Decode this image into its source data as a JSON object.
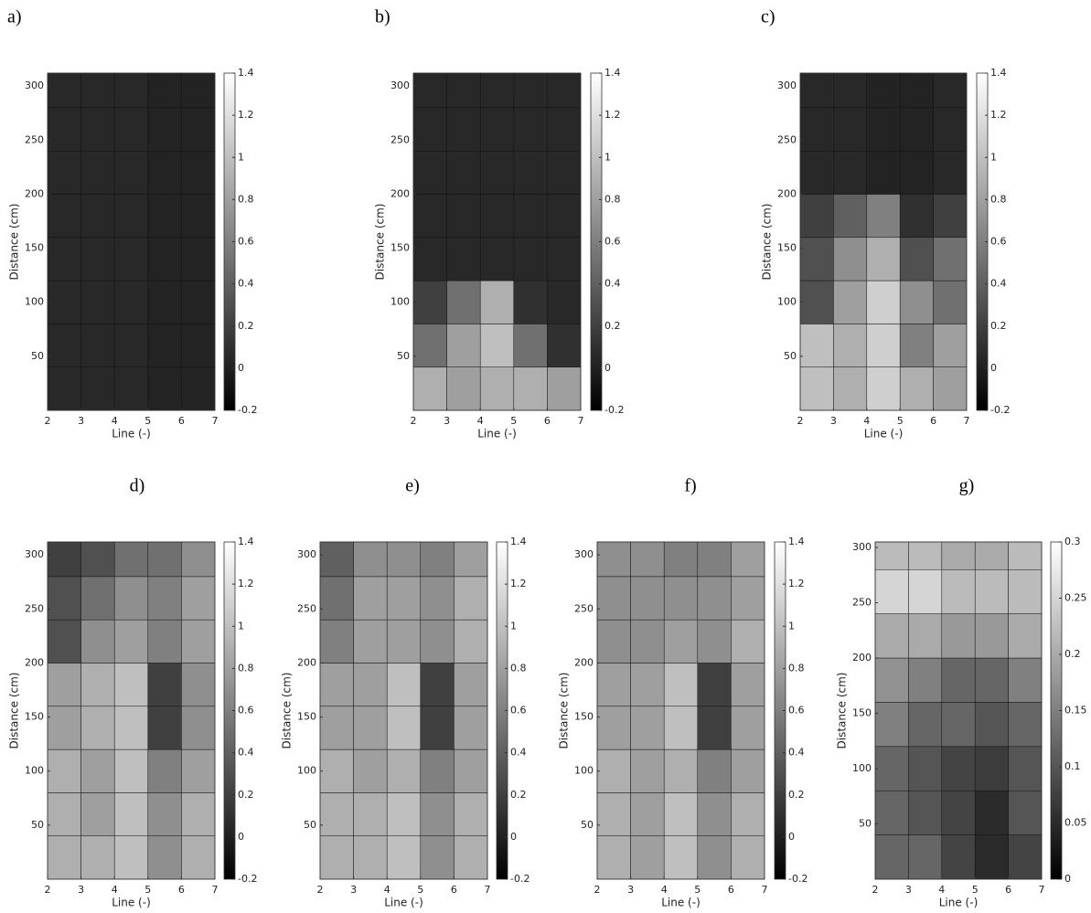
{
  "chart_data": [
    {
      "type": "contour",
      "panel_label": "a)",
      "xlabel": "Line (-)",
      "ylabel": "Distance (cm)",
      "xlim": [
        2,
        7
      ],
      "xticks": [
        2,
        3,
        4,
        5,
        6,
        7
      ],
      "ylim": [
        0,
        312
      ],
      "yticks": [
        50,
        100,
        150,
        200,
        250,
        300
      ],
      "clim": [
        -0.2,
        1.4
      ],
      "cticks": [
        -0.2,
        0,
        0.2,
        0.4,
        0.6,
        0.8,
        1,
        1.2,
        1.4
      ],
      "x_edges": [
        2,
        3,
        4,
        5,
        6,
        7
      ],
      "y_edges": [
        0,
        40,
        80,
        120,
        160,
        200,
        240,
        280,
        312
      ],
      "z": [
        [
          0.05,
          0.05,
          0.05,
          0.02,
          0.02
        ],
        [
          0.05,
          0.05,
          0.05,
          0.02,
          0.02
        ],
        [
          0.05,
          0.05,
          0.05,
          0.02,
          0.02
        ],
        [
          0.05,
          0.05,
          0.05,
          0.02,
          0.02
        ],
        [
          0.05,
          0.05,
          0.05,
          0.02,
          0.02
        ],
        [
          0.05,
          0.05,
          0.05,
          0.02,
          0.02
        ],
        [
          0.05,
          0.05,
          0.05,
          0.02,
          0.02
        ],
        [
          0.05,
          0.05,
          0.05,
          0.02,
          0.02
        ]
      ]
    },
    {
      "type": "contour",
      "panel_label": "b)",
      "xlabel": "Line (-)",
      "ylabel": "Distance (cm)",
      "xlim": [
        2,
        7
      ],
      "xticks": [
        2,
        3,
        4,
        5,
        6,
        7
      ],
      "ylim": [
        0,
        312
      ],
      "yticks": [
        50,
        100,
        150,
        200,
        250,
        300
      ],
      "clim": [
        -0.2,
        1.4
      ],
      "cticks": [
        -0.2,
        0,
        0.2,
        0.4,
        0.6,
        0.8,
        1,
        1.2,
        1.4
      ],
      "x_edges": [
        2,
        3,
        4,
        5,
        6,
        7
      ],
      "y_edges": [
        0,
        40,
        80,
        120,
        160,
        200,
        240,
        280,
        312
      ],
      "z": [
        [
          0.9,
          0.8,
          0.9,
          0.9,
          0.8
        ],
        [
          0.5,
          0.8,
          1.0,
          0.5,
          0.1
        ],
        [
          0.2,
          0.5,
          0.9,
          0.1,
          0.05
        ],
        [
          0.05,
          0.05,
          0.05,
          0.05,
          0.05
        ],
        [
          0.05,
          0.05,
          0.05,
          0.05,
          0.05
        ],
        [
          0.05,
          0.05,
          0.05,
          0.05,
          0.05
        ],
        [
          0.05,
          0.05,
          0.05,
          0.05,
          0.05
        ],
        [
          0.05,
          0.05,
          0.05,
          0.05,
          0.05
        ]
      ]
    },
    {
      "type": "contour",
      "panel_label": "c)",
      "xlabel": "Line (-)",
      "ylabel": "Distance (cm)",
      "xlim": [
        2,
        7
      ],
      "xticks": [
        2,
        3,
        4,
        5,
        6,
        7
      ],
      "ylim": [
        0,
        312
      ],
      "yticks": [
        50,
        100,
        150,
        200,
        250,
        300
      ],
      "clim": [
        -0.2,
        1.4
      ],
      "cticks": [
        -0.2,
        0,
        0.2,
        0.4,
        0.6,
        0.8,
        1,
        1.2,
        1.4
      ],
      "x_edges": [
        2,
        3,
        4,
        5,
        6,
        7
      ],
      "y_edges": [
        0,
        40,
        80,
        120,
        160,
        200,
        240,
        280,
        312
      ],
      "z": [
        [
          1.0,
          0.9,
          1.1,
          0.9,
          0.8
        ],
        [
          1.0,
          0.9,
          1.1,
          0.6,
          0.8
        ],
        [
          0.3,
          0.8,
          1.1,
          0.7,
          0.5
        ],
        [
          0.3,
          0.7,
          0.9,
          0.3,
          0.5
        ],
        [
          0.2,
          0.4,
          0.6,
          0.1,
          0.2
        ],
        [
          0.05,
          0.05,
          0.02,
          0.02,
          0.05
        ],
        [
          0.05,
          0.05,
          0.02,
          0.02,
          0.05
        ],
        [
          0.05,
          0.05,
          0.02,
          0.02,
          0.05
        ]
      ]
    },
    {
      "type": "contour",
      "panel_label": "d)",
      "xlabel": "Line (-)",
      "ylabel": "Distance (cm)",
      "xlim": [
        2,
        7
      ],
      "xticks": [
        2,
        3,
        4,
        5,
        6,
        7
      ],
      "ylim": [
        0,
        312
      ],
      "yticks": [
        50,
        100,
        150,
        200,
        250,
        300
      ],
      "clim": [
        -0.2,
        1.4
      ],
      "cticks": [
        -0.2,
        0,
        0.2,
        0.4,
        0.6,
        0.8,
        1,
        1.2,
        1.4
      ],
      "x_edges": [
        2,
        3,
        4,
        5,
        6,
        7
      ],
      "y_edges": [
        0,
        40,
        80,
        120,
        160,
        200,
        240,
        280,
        312
      ],
      "z": [
        [
          0.9,
          0.9,
          1.0,
          0.7,
          0.9
        ],
        [
          0.9,
          0.8,
          1.0,
          0.7,
          0.9
        ],
        [
          0.9,
          0.8,
          1.0,
          0.6,
          0.8
        ],
        [
          0.8,
          0.9,
          1.0,
          0.2,
          0.7
        ],
        [
          0.8,
          0.9,
          1.0,
          0.2,
          0.7
        ],
        [
          0.3,
          0.7,
          0.8,
          0.6,
          0.8
        ],
        [
          0.3,
          0.5,
          0.7,
          0.6,
          0.8
        ],
        [
          0.2,
          0.3,
          0.5,
          0.5,
          0.7
        ]
      ]
    },
    {
      "type": "contour",
      "panel_label": "e)",
      "xlabel": "Line (-)",
      "ylabel": "Distance (cm)",
      "xlim": [
        2,
        7
      ],
      "xticks": [
        2,
        3,
        4,
        5,
        6,
        7
      ],
      "ylim": [
        0,
        312
      ],
      "yticks": [
        50,
        100,
        150,
        200,
        250,
        300
      ],
      "clim": [
        -0.2,
        1.4
      ],
      "cticks": [
        -0.2,
        0,
        0.2,
        0.4,
        0.6,
        0.8,
        1,
        1.2,
        1.4
      ],
      "x_edges": [
        2,
        3,
        4,
        5,
        6,
        7
      ],
      "y_edges": [
        0,
        40,
        80,
        120,
        160,
        200,
        240,
        280,
        312
      ],
      "z": [
        [
          0.9,
          0.9,
          1.0,
          0.7,
          0.9
        ],
        [
          0.9,
          0.9,
          1.0,
          0.7,
          0.9
        ],
        [
          0.9,
          0.8,
          0.9,
          0.6,
          0.8
        ],
        [
          0.8,
          0.8,
          1.0,
          0.2,
          0.8
        ],
        [
          0.8,
          0.8,
          1.0,
          0.2,
          0.8
        ],
        [
          0.6,
          0.8,
          0.8,
          0.7,
          0.9
        ],
        [
          0.5,
          0.8,
          0.8,
          0.7,
          0.9
        ],
        [
          0.4,
          0.7,
          0.7,
          0.6,
          0.8
        ]
      ]
    },
    {
      "type": "contour",
      "panel_label": "f)",
      "xlabel": "Line (-)",
      "ylabel": "Distance (cm)",
      "xlim": [
        2,
        7
      ],
      "xticks": [
        2,
        3,
        4,
        5,
        6,
        7
      ],
      "ylim": [
        0,
        312
      ],
      "yticks": [
        50,
        100,
        150,
        200,
        250,
        300
      ],
      "clim": [
        -0.2,
        1.4
      ],
      "cticks": [
        -0.2,
        0,
        0.2,
        0.4,
        0.6,
        0.8,
        1,
        1.2,
        1.4
      ],
      "x_edges": [
        2,
        3,
        4,
        5,
        6,
        7
      ],
      "y_edges": [
        0,
        40,
        80,
        120,
        160,
        200,
        240,
        280,
        312
      ],
      "z": [
        [
          0.9,
          0.8,
          1.0,
          0.7,
          0.9
        ],
        [
          0.9,
          0.8,
          1.0,
          0.7,
          0.9
        ],
        [
          0.9,
          0.8,
          0.9,
          0.6,
          0.8
        ],
        [
          0.8,
          0.8,
          1.0,
          0.2,
          0.8
        ],
        [
          0.8,
          0.8,
          1.0,
          0.2,
          0.8
        ],
        [
          0.7,
          0.7,
          0.8,
          0.7,
          0.9
        ],
        [
          0.7,
          0.7,
          0.7,
          0.7,
          0.8
        ],
        [
          0.7,
          0.7,
          0.6,
          0.6,
          0.8
        ]
      ]
    },
    {
      "type": "contour",
      "panel_label": "g)",
      "xlabel": "Line (-)",
      "ylabel": "Distance (cm)",
      "xlim": [
        2,
        7
      ],
      "xticks": [
        2,
        3,
        4,
        5,
        6,
        7
      ],
      "ylim": [
        0,
        305
      ],
      "yticks": [
        50,
        100,
        150,
        200,
        250,
        300
      ],
      "clim": [
        0,
        0.3
      ],
      "cticks": [
        0,
        0.05,
        0.1,
        0.15,
        0.2,
        0.25,
        0.3
      ],
      "x_edges": [
        2,
        3,
        4,
        5,
        6,
        7
      ],
      "y_edges": [
        0,
        40,
        80,
        120,
        160,
        200,
        240,
        280,
        305
      ],
      "z": [
        [
          0.12,
          0.12,
          0.08,
          0.05,
          0.08
        ],
        [
          0.12,
          0.1,
          0.08,
          0.05,
          0.1
        ],
        [
          0.12,
          0.1,
          0.08,
          0.07,
          0.1
        ],
        [
          0.15,
          0.12,
          0.12,
          0.1,
          0.12
        ],
        [
          0.17,
          0.15,
          0.12,
          0.12,
          0.15
        ],
        [
          0.2,
          0.2,
          0.18,
          0.18,
          0.2
        ],
        [
          0.25,
          0.25,
          0.22,
          0.22,
          0.22
        ],
        [
          0.22,
          0.22,
          0.2,
          0.2,
          0.22
        ]
      ]
    }
  ]
}
